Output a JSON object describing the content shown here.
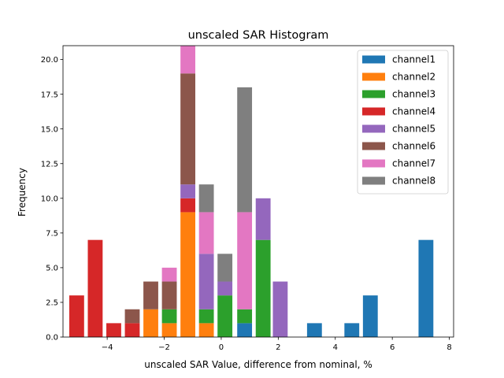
{
  "chart_data": {
    "type": "bar",
    "title": "unscaled SAR Histogram",
    "xlabel": "unscaled SAR Value, difference from nominal, %",
    "ylabel": "Frequency",
    "xlim": [
      -5.55,
      8.15
    ],
    "ylim": [
      0,
      21
    ],
    "xticks": [
      -4,
      -2,
      0,
      2,
      4,
      6,
      8
    ],
    "xtick_labels": [
      "−4",
      "−2",
      "0",
      "2",
      "4",
      "6",
      "8"
    ],
    "yticks": [
      0,
      2.5,
      5,
      7.5,
      10,
      12.5,
      15,
      17.5,
      20
    ],
    "ytick_labels": [
      "0.0",
      "2.5",
      "5.0",
      "7.5",
      "10.0",
      "12.5",
      "15.0",
      "17.5",
      "20.0"
    ],
    "bar_width": 0.52,
    "legend_position": "top-right",
    "series": [
      {
        "name": "channel1",
        "color": "#1f77b4",
        "bars": [
          {
            "x": 0.82,
            "base": 0,
            "value": 1
          },
          {
            "x": 3.27,
            "base": 0,
            "value": 1
          },
          {
            "x": 4.58,
            "base": 0,
            "value": 1
          },
          {
            "x": 5.23,
            "base": 0,
            "value": 3
          },
          {
            "x": 7.18,
            "base": 0,
            "value": 7
          }
        ]
      },
      {
        "name": "channel2",
        "color": "#ff7f0e",
        "bars": [
          {
            "x": -2.47,
            "base": 0,
            "value": 2
          },
          {
            "x": -1.82,
            "base": 0,
            "value": 1
          },
          {
            "x": -1.17,
            "base": 0,
            "value": 9
          },
          {
            "x": -0.52,
            "base": 0,
            "value": 1
          }
        ]
      },
      {
        "name": "channel3",
        "color": "#2ca02c",
        "bars": [
          {
            "x": -1.82,
            "base": 1,
            "value": 1
          },
          {
            "x": -0.52,
            "base": 1,
            "value": 1
          },
          {
            "x": 0.13,
            "base": 0,
            "value": 3
          },
          {
            "x": 0.82,
            "base": 1,
            "value": 1
          },
          {
            "x": 1.47,
            "base": 0,
            "value": 7
          }
        ]
      },
      {
        "name": "channel4",
        "color": "#d62728",
        "bars": [
          {
            "x": -5.07,
            "base": 0,
            "value": 3
          },
          {
            "x": -4.42,
            "base": 0,
            "value": 7
          },
          {
            "x": -3.77,
            "base": 0,
            "value": 1
          },
          {
            "x": -3.12,
            "base": 0,
            "value": 1
          },
          {
            "x": -1.17,
            "base": 9,
            "value": 1
          }
        ]
      },
      {
        "name": "channel5",
        "color": "#9467bd",
        "bars": [
          {
            "x": -1.17,
            "base": 10,
            "value": 1
          },
          {
            "x": -0.52,
            "base": 2,
            "value": 4
          },
          {
            "x": 0.13,
            "base": 3,
            "value": 1
          },
          {
            "x": 1.47,
            "base": 7,
            "value": 3
          },
          {
            "x": 2.07,
            "base": 0,
            "value": 4
          }
        ]
      },
      {
        "name": "channel6",
        "color": "#8c564b",
        "bars": [
          {
            "x": -3.12,
            "base": 1,
            "value": 1
          },
          {
            "x": -2.47,
            "base": 2,
            "value": 2
          },
          {
            "x": -1.82,
            "base": 2,
            "value": 2
          },
          {
            "x": -1.17,
            "base": 11,
            "value": 8
          }
        ]
      },
      {
        "name": "channel7",
        "color": "#e377c2",
        "bars": [
          {
            "x": -1.82,
            "base": 4,
            "value": 1
          },
          {
            "x": -1.17,
            "base": 19,
            "value": 2
          },
          {
            "x": -0.52,
            "base": 6,
            "value": 3
          },
          {
            "x": 0.82,
            "base": 2,
            "value": 7
          }
        ]
      },
      {
        "name": "channel8",
        "color": "#7f7f7f",
        "bars": [
          {
            "x": -0.52,
            "base": 9,
            "value": 2
          },
          {
            "x": 0.13,
            "base": 4,
            "value": 2
          },
          {
            "x": 0.82,
            "base": 9,
            "value": 9
          }
        ]
      }
    ]
  }
}
